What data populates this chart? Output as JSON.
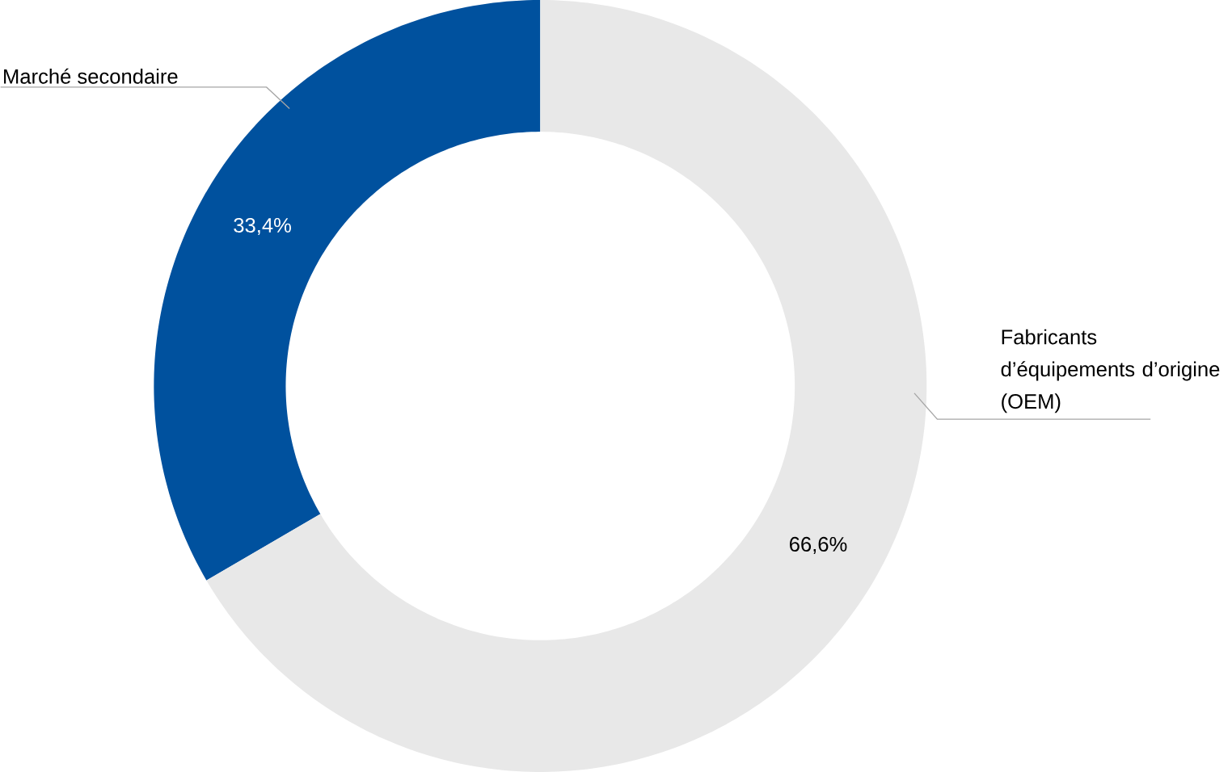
{
  "chart_data": {
    "type": "donut",
    "categories": [
      "Marché secondaire",
      "Fabricants d’équipements d’origine (OEM)"
    ],
    "values": [
      33.4,
      66.6
    ],
    "value_labels": [
      "33,4%",
      "66,6%"
    ],
    "colors": [
      "#00519e",
      "#e8e8e8"
    ]
  }
}
